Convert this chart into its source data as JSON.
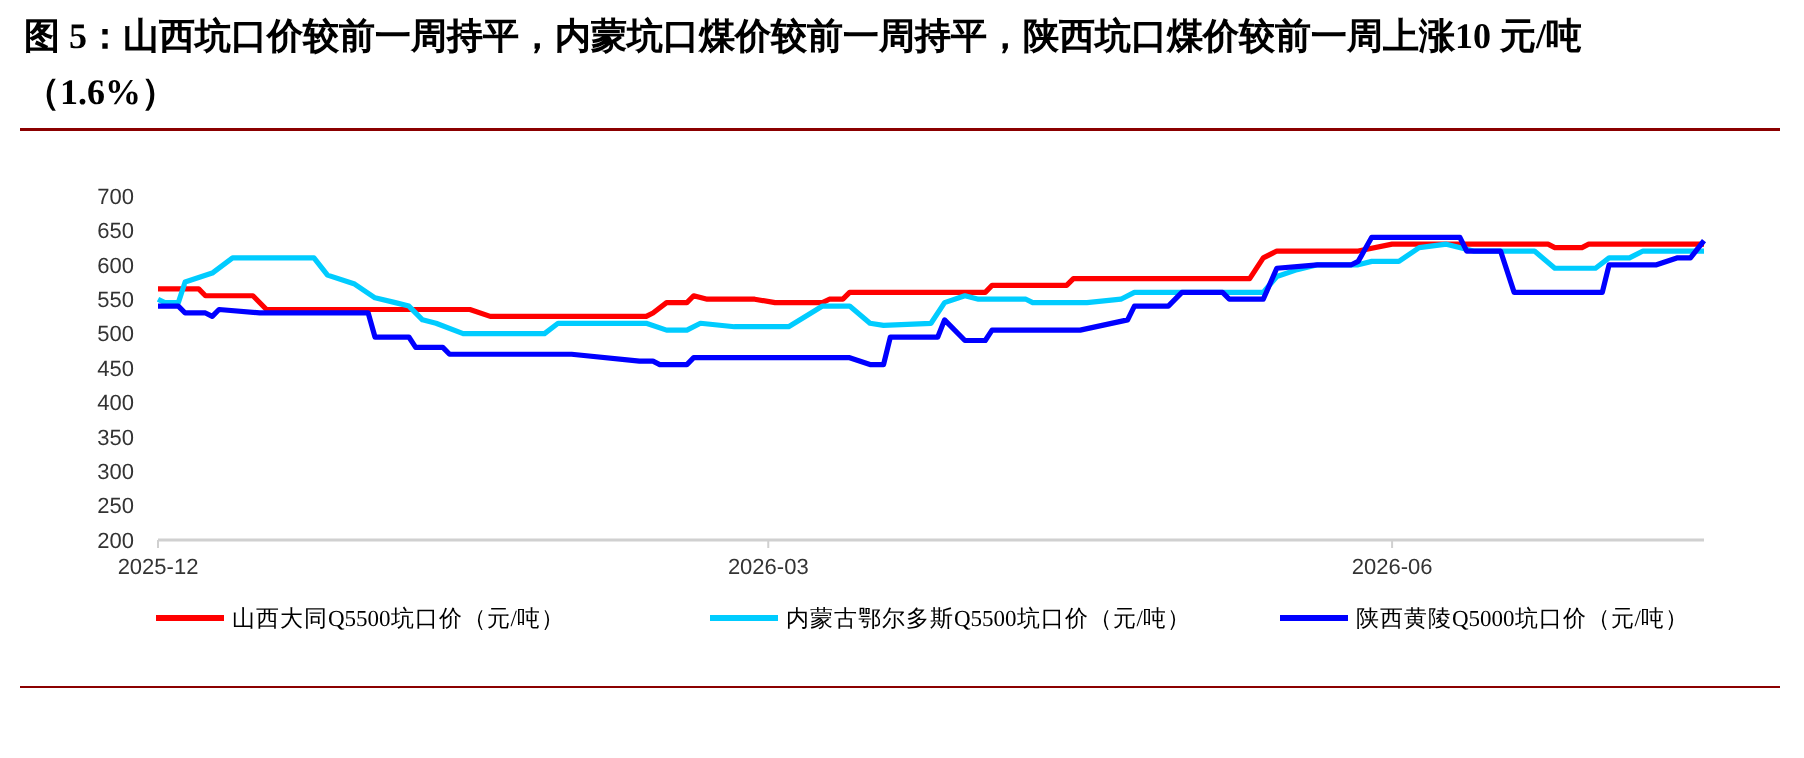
{
  "chart_data": {
    "type": "line",
    "title": "图 5：山西坑口价较前一周持平，内蒙坑口煤价较前一周持平，陕西坑口煤价较前一周上涨10 元/吨（1.6%）",
    "xlim": [
      "2025-12-01",
      "2026-07-17"
    ],
    "xticks": [
      "2025-12",
      "2026-03",
      "2026-06"
    ],
    "ylim": [
      200,
      700
    ],
    "yticks": [
      200,
      250,
      300,
      350,
      400,
      450,
      500,
      550,
      600,
      650,
      700
    ],
    "grid": false,
    "legend": "bottom",
    "marker": "none",
    "line_style": "solid",
    "series": [
      {
        "name": "山西大同Q5500坑口价（元/吨）",
        "color": "#ff0000",
        "x": [
          "2025-12-01",
          "2025-12-07",
          "2025-12-08",
          "2025-12-15",
          "2025-12-17",
          "2026-01-16",
          "2026-01-19",
          "2026-02-11",
          "2026-02-12",
          "2026-02-14",
          "2026-02-17",
          "2026-02-18",
          "2026-02-20",
          "2026-02-27",
          "2026-03-02",
          "2026-03-09",
          "2026-03-10",
          "2026-03-12",
          "2026-03-13",
          "2026-04-02",
          "2026-04-03",
          "2026-04-14",
          "2026-04-15",
          "2026-05-11",
          "2026-05-13",
          "2026-05-15",
          "2026-05-27",
          "2026-06-01",
          "2026-06-24",
          "2026-06-25",
          "2026-06-29",
          "2026-06-30",
          "2026-07-17"
        ],
        "values": [
          565,
          565,
          555,
          555,
          535,
          535,
          525,
          525,
          530,
          545,
          545,
          555,
          550,
          550,
          545,
          545,
          550,
          550,
          560,
          560,
          570,
          570,
          580,
          580,
          610,
          620,
          620,
          630,
          630,
          625,
          625,
          630,
          630
        ]
      },
      {
        "name": "内蒙古鄂尔多斯Q5500坑口价（元/吨）",
        "color": "#00ccff",
        "x": [
          "2025-12-01",
          "2025-12-02",
          "2025-12-04",
          "2025-12-05",
          "2025-12-09",
          "2025-12-12",
          "2025-12-24",
          "2025-12-26",
          "2025-12-30",
          "2026-01-02",
          "2026-01-05",
          "2026-01-07",
          "2026-01-09",
          "2026-01-11",
          "2026-01-15",
          "2026-01-27",
          "2026-01-29",
          "2026-02-11",
          "2026-02-14",
          "2026-02-17",
          "2026-02-19",
          "2026-02-24",
          "2026-03-04",
          "2026-03-09",
          "2026-03-13",
          "2026-03-16",
          "2026-03-18",
          "2026-03-25",
          "2026-03-27",
          "2026-03-30",
          "2026-04-01",
          "2026-04-08",
          "2026-04-09",
          "2026-04-17",
          "2026-04-22",
          "2026-04-24",
          "2026-05-13",
          "2026-05-15",
          "2026-05-18",
          "2026-05-21",
          "2026-05-27",
          "2026-05-29",
          "2026-06-02",
          "2026-06-05",
          "2026-06-09",
          "2026-06-13",
          "2026-06-22",
          "2026-06-25",
          "2026-07-01",
          "2026-07-03",
          "2026-07-06",
          "2026-07-08",
          "2026-07-17"
        ],
        "values": [
          550,
          545,
          545,
          575,
          588,
          610,
          610,
          585,
          572,
          552,
          545,
          540,
          520,
          515,
          500,
          500,
          515,
          515,
          505,
          505,
          515,
          510,
          510,
          540,
          540,
          515,
          512,
          515,
          545,
          555,
          550,
          550,
          545,
          545,
          550,
          560,
          560,
          583,
          593,
          600,
          600,
          605,
          605,
          625,
          630,
          620,
          620,
          595,
          595,
          610,
          610,
          620,
          620
        ]
      },
      {
        "name": "陕西黄陵Q5000坑口价（元/吨）",
        "color": "#0000ff",
        "x": [
          "2025-12-01",
          "2025-12-04",
          "2025-12-05",
          "2025-12-08",
          "2025-12-09",
          "2025-12-10",
          "2025-12-16",
          "2026-01-01",
          "2026-01-02",
          "2026-01-07",
          "2026-01-08",
          "2026-01-12",
          "2026-01-13",
          "2026-01-31",
          "2026-02-10",
          "2026-02-12",
          "2026-02-13",
          "2026-02-17",
          "2026-02-18",
          "2026-03-13",
          "2026-03-16",
          "2026-03-18",
          "2026-03-19",
          "2026-03-26",
          "2026-03-27",
          "2026-03-30",
          "2026-04-02",
          "2026-04-03",
          "2026-04-16",
          "2026-04-23",
          "2026-04-24",
          "2026-04-29",
          "2026-05-01",
          "2026-05-07",
          "2026-05-08",
          "2026-05-13",
          "2026-05-15",
          "2026-05-21",
          "2026-05-26",
          "2026-05-27",
          "2026-05-29",
          "2026-06-11",
          "2026-06-12",
          "2026-06-17",
          "2026-06-19",
          "2026-07-02",
          "2026-07-03",
          "2026-07-10",
          "2026-07-13",
          "2026-07-15",
          "2026-07-17"
        ],
        "values": [
          540,
          540,
          530,
          530,
          525,
          535,
          530,
          530,
          495,
          495,
          480,
          480,
          470,
          470,
          460,
          460,
          455,
          455,
          465,
          465,
          455,
          455,
          495,
          495,
          520,
          490,
          490,
          505,
          505,
          520,
          540,
          540,
          560,
          560,
          550,
          550,
          595,
          600,
          600,
          605,
          640,
          640,
          620,
          620,
          560,
          560,
          600,
          600,
          610,
          610,
          635
        ]
      }
    ]
  }
}
